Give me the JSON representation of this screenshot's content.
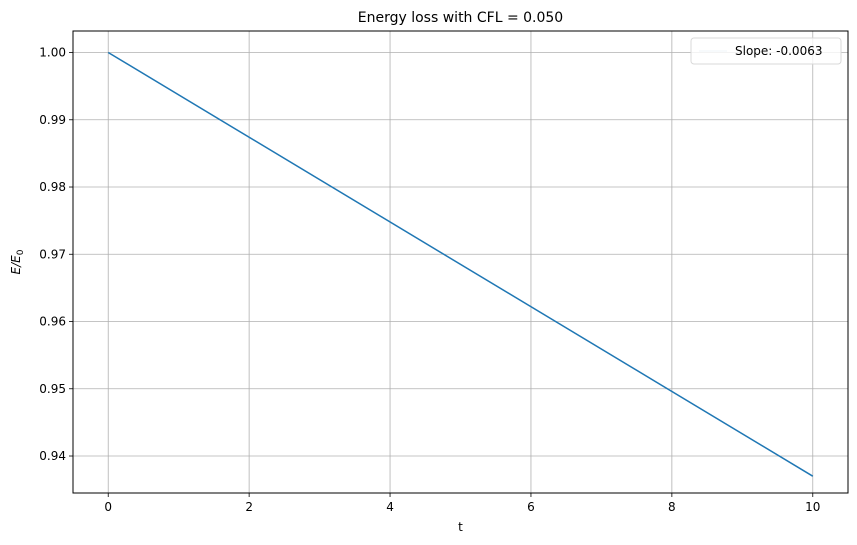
{
  "chart_data": {
    "type": "line",
    "title": "Energy loss with CFL = 0.050",
    "xlabel": "t",
    "ylabel_main": "E/E",
    "ylabel_sub": "0",
    "xlim": [
      -0.5,
      10.5
    ],
    "ylim": [
      0.9345,
      1.0032
    ],
    "xticks": [
      0,
      2,
      4,
      6,
      8,
      10
    ],
    "xtick_labels": [
      "0",
      "2",
      "4",
      "6",
      "8",
      "10"
    ],
    "yticks": [
      0.94,
      0.95,
      0.96,
      0.97,
      0.98,
      0.99,
      1.0
    ],
    "ytick_labels": [
      "0.94",
      "0.95",
      "0.96",
      "0.97",
      "0.98",
      "0.99",
      "1.00"
    ],
    "grid": true,
    "legend_position": "top-right",
    "series": [
      {
        "name": "Slope: -0.0063",
        "x": [
          0,
          10
        ],
        "y": [
          1.0,
          0.937
        ],
        "color": "#1f77b4"
      }
    ],
    "colors": {
      "grid": "#b0b0b0",
      "axes": "#000000",
      "line": "#1f77b4",
      "legend_border": "#d9d9d9"
    }
  }
}
